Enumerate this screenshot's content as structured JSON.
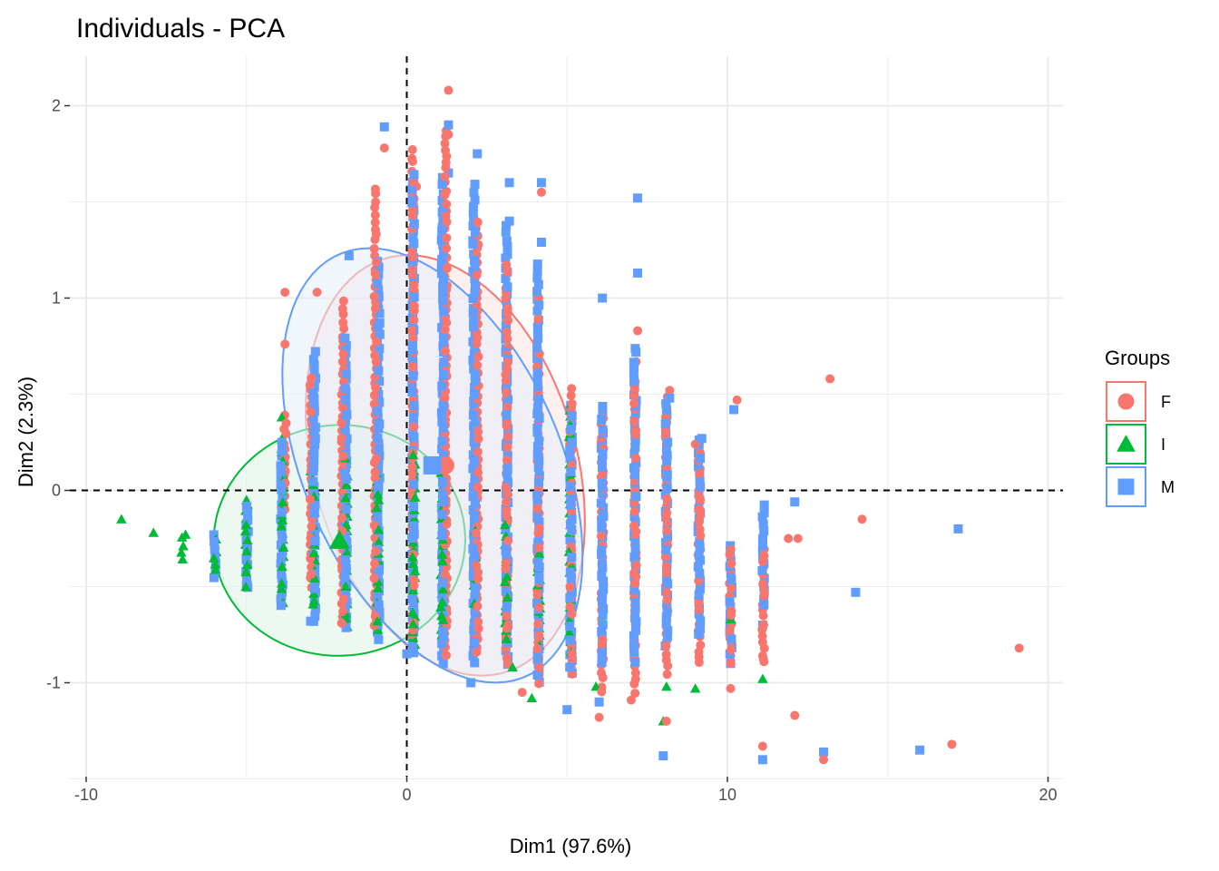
{
  "chart_data": {
    "type": "scatter",
    "title": "Individuals - PCA",
    "xlabel": "Dim1 (97.6%)",
    "ylabel": "Dim2 (2.3%)",
    "xlim": [
      -10,
      20
    ],
    "ylim": [
      -1.5,
      2.25
    ],
    "x_ticks": [
      -10,
      0,
      10,
      20
    ],
    "y_ticks": [
      -1,
      0,
      1,
      2
    ],
    "x_tick_labels": [
      "-10",
      "0",
      "10",
      "20"
    ],
    "y_tick_labels": [
      "-1",
      "0",
      "1",
      "2"
    ],
    "grid": true,
    "reference_lines": {
      "x": 0,
      "y": 0
    },
    "legend": {
      "title": "Groups",
      "position": "right",
      "entries": [
        {
          "label": "F",
          "shape": "circle",
          "color": "#F8766D"
        },
        {
          "label": "I",
          "shape": "triangle",
          "color": "#00BA38"
        },
        {
          "label": "M",
          "shape": "square",
          "color": "#619CFF"
        }
      ]
    },
    "groups": [
      {
        "label": "F",
        "shape": "circle",
        "color": "#F8766D",
        "fill": "#fce3e1",
        "centroid": [
          1.2,
          0.13
        ],
        "ellipse": {
          "cx": 1.2,
          "cy": 0.13,
          "rx": 8.2,
          "ry": 1.12,
          "angle": -16
        },
        "columns": [
          {
            "x": -3.8,
            "y": [
              -0.1,
              0.4
            ]
          },
          {
            "x": -3,
            "y": [
              -0.5,
              0.6
            ]
          },
          {
            "x": -2,
            "y": [
              -0.7,
              1.0
            ]
          },
          {
            "x": -1,
            "y": [
              -0.7,
              1.6
            ]
          },
          {
            "x": 0.2,
            "y": [
              -0.75,
              1.8
            ]
          },
          {
            "x": 1.2,
            "y": [
              -0.85,
              1.88
            ]
          },
          {
            "x": 2.2,
            "y": [
              -0.85,
              1.4
            ]
          },
          {
            "x": 3.1,
            "y": [
              -0.9,
              1.2
            ]
          },
          {
            "x": 4.1,
            "y": [
              -1.0,
              1.0
            ]
          },
          {
            "x": 5.1,
            "y": [
              -0.95,
              0.55
            ]
          },
          {
            "x": 6.1,
            "y": [
              -1.05,
              0.45
            ]
          },
          {
            "x": 7.1,
            "y": [
              -1.05,
              0.7
            ]
          },
          {
            "x": 8.1,
            "y": [
              -0.95,
              0.5
            ]
          },
          {
            "x": 9.1,
            "y": [
              -0.9,
              0.2
            ]
          },
          {
            "x": 10.1,
            "y": [
              -0.9,
              -0.3
            ]
          },
          {
            "x": 11.1,
            "y": [
              -0.9,
              -0.3
            ]
          }
        ],
        "points": [
          [
            1.3,
            2.08
          ],
          [
            -0.7,
            1.78
          ],
          [
            0.3,
            1.58
          ],
          [
            1.3,
            1.85
          ],
          [
            4.2,
            1.55
          ],
          [
            -3.8,
            1.03
          ],
          [
            -2.8,
            1.03
          ],
          [
            -3.8,
            0.76
          ],
          [
            7.2,
            0.83
          ],
          [
            8.2,
            0.52
          ],
          [
            10.3,
            0.47
          ],
          [
            13.2,
            0.58
          ],
          [
            14.2,
            -0.15
          ],
          [
            12.2,
            -0.25
          ],
          [
            19.1,
            -0.82
          ],
          [
            17.0,
            -1.32
          ],
          [
            13.0,
            -1.4
          ],
          [
            11.1,
            -1.33
          ],
          [
            12.1,
            -1.17
          ],
          [
            7.0,
            -1.09
          ],
          [
            6.0,
            -1.18
          ],
          [
            8.1,
            -1.2
          ],
          [
            9.1,
            -0.47
          ],
          [
            11.1,
            -0.86
          ],
          [
            10.1,
            -1.03
          ],
          [
            9.1,
            -0.1
          ],
          [
            9.0,
            0.24
          ],
          [
            11.9,
            -0.25
          ],
          [
            3.6,
            -1.05
          ]
        ]
      },
      {
        "label": "I",
        "shape": "triangle",
        "color": "#00BA38",
        "fill": "#dff3e3",
        "centroid": [
          -2.1,
          -0.26
        ],
        "ellipse": {
          "cx": -2.1,
          "cy": -0.26,
          "rx": 7.85,
          "ry": 0.6,
          "angle": -3
        },
        "columns": [
          {
            "x": -7,
            "y": [
              -0.35,
              -0.23
            ]
          },
          {
            "x": -6,
            "y": [
              -0.42,
              -0.22
            ]
          },
          {
            "x": -5,
            "y": [
              -0.5,
              -0.05
            ]
          },
          {
            "x": -3.9,
            "y": [
              -0.58,
              0.28
            ]
          },
          {
            "x": -2.9,
            "y": [
              -0.6,
              0.1
            ]
          },
          {
            "x": -1.9,
            "y": [
              -0.7,
              0.18
            ]
          },
          {
            "x": -0.9,
            "y": [
              -0.72,
              0.1
            ]
          },
          {
            "x": 0.2,
            "y": [
              -0.8,
              0.2
            ]
          },
          {
            "x": 1.1,
            "y": [
              -0.75,
              0.1
            ]
          },
          {
            "x": 2.1,
            "y": [
              -0.7,
              -0.05
            ]
          },
          {
            "x": 3.1,
            "y": [
              -0.8,
              -0.1
            ]
          },
          {
            "x": 4.1,
            "y": [
              -0.85,
              -0.3
            ]
          },
          {
            "x": 5.1,
            "y": [
              -0.85,
              0.45
            ]
          }
        ],
        "points": [
          [
            -8.9,
            -0.15
          ],
          [
            -7.9,
            -0.22
          ],
          [
            -6.9,
            -0.23
          ],
          [
            -5.0,
            -0.05
          ],
          [
            -3.9,
            0.38
          ],
          [
            -3.0,
            0.1
          ],
          [
            3.9,
            -1.08
          ],
          [
            5.9,
            -1.02
          ],
          [
            8.1,
            -1.02
          ],
          [
            9.0,
            -1.03
          ],
          [
            10.1,
            -0.67
          ],
          [
            11.1,
            -0.98
          ],
          [
            8.0,
            -1.2
          ],
          [
            3.3,
            -0.92
          ],
          [
            5.1,
            -0.85
          ]
        ]
      },
      {
        "label": "M",
        "shape": "square",
        "color": "#619CFF",
        "fill": "#e6eefb",
        "centroid": [
          0.8,
          0.13
        ],
        "ellipse": {
          "cx": 0.8,
          "cy": 0.13,
          "rx": 8.0,
          "ry": 1.2,
          "angle": -24
        },
        "columns": [
          {
            "x": -6,
            "y": [
              -0.45,
              -0.22
            ]
          },
          {
            "x": -5,
            "y": [
              -0.5,
              -0.05
            ]
          },
          {
            "x": -3.9,
            "y": [
              -0.6,
              0.25
            ]
          },
          {
            "x": -2.9,
            "y": [
              -0.68,
              0.75
            ]
          },
          {
            "x": -1.9,
            "y": [
              -0.72,
              0.8
            ]
          },
          {
            "x": -0.9,
            "y": [
              -0.77,
              1.22
            ]
          },
          {
            "x": 0.2,
            "y": [
              -0.85,
              1.65
            ]
          },
          {
            "x": 1.1,
            "y": [
              -0.9,
              1.63
            ]
          },
          {
            "x": 2.1,
            "y": [
              -0.9,
              1.6
            ]
          },
          {
            "x": 3.1,
            "y": [
              -0.9,
              1.4
            ]
          },
          {
            "x": 4.1,
            "y": [
              -1.0,
              1.2
            ]
          },
          {
            "x": 5.1,
            "y": [
              -0.95,
              0.48
            ]
          },
          {
            "x": 6.1,
            "y": [
              -0.9,
              0.45
            ]
          },
          {
            "x": 7.1,
            "y": [
              -0.9,
              0.75
            ]
          },
          {
            "x": 8.1,
            "y": [
              -0.8,
              0.48
            ]
          },
          {
            "x": 9.1,
            "y": [
              -0.75,
              0.27
            ]
          },
          {
            "x": 10.1,
            "y": [
              -0.85,
              -0.28
            ]
          },
          {
            "x": 11.1,
            "y": [
              -0.6,
              -0.05
            ]
          }
        ],
        "points": [
          [
            -0.7,
            1.89
          ],
          [
            1.3,
            1.9
          ],
          [
            1.3,
            1.65
          ],
          [
            2.2,
            1.75
          ],
          [
            3.2,
            1.6
          ],
          [
            4.2,
            1.6
          ],
          [
            7.2,
            1.52
          ],
          [
            7.2,
            1.13
          ],
          [
            6.1,
            1.0
          ],
          [
            4.2,
            1.29
          ],
          [
            3.2,
            1.4
          ],
          [
            -1.8,
            1.22
          ],
          [
            17.2,
            -0.2
          ],
          [
            14.0,
            -0.53
          ],
          [
            16.0,
            -1.35
          ],
          [
            13.0,
            -1.36
          ],
          [
            11.1,
            -1.4
          ],
          [
            8.0,
            -1.38
          ],
          [
            6.0,
            -1.1
          ],
          [
            5.0,
            -1.14
          ],
          [
            12.1,
            -0.06
          ],
          [
            10.2,
            0.42
          ],
          [
            8.2,
            0.48
          ],
          [
            9.2,
            0.27
          ],
          [
            11.1,
            -0.7
          ],
          [
            10.1,
            -0.9
          ],
          [
            2.0,
            -1.0
          ],
          [
            -3.0,
            -0.68
          ],
          [
            -5.0,
            -0.5
          ],
          [
            0.0,
            -0.85
          ]
        ]
      }
    ]
  }
}
